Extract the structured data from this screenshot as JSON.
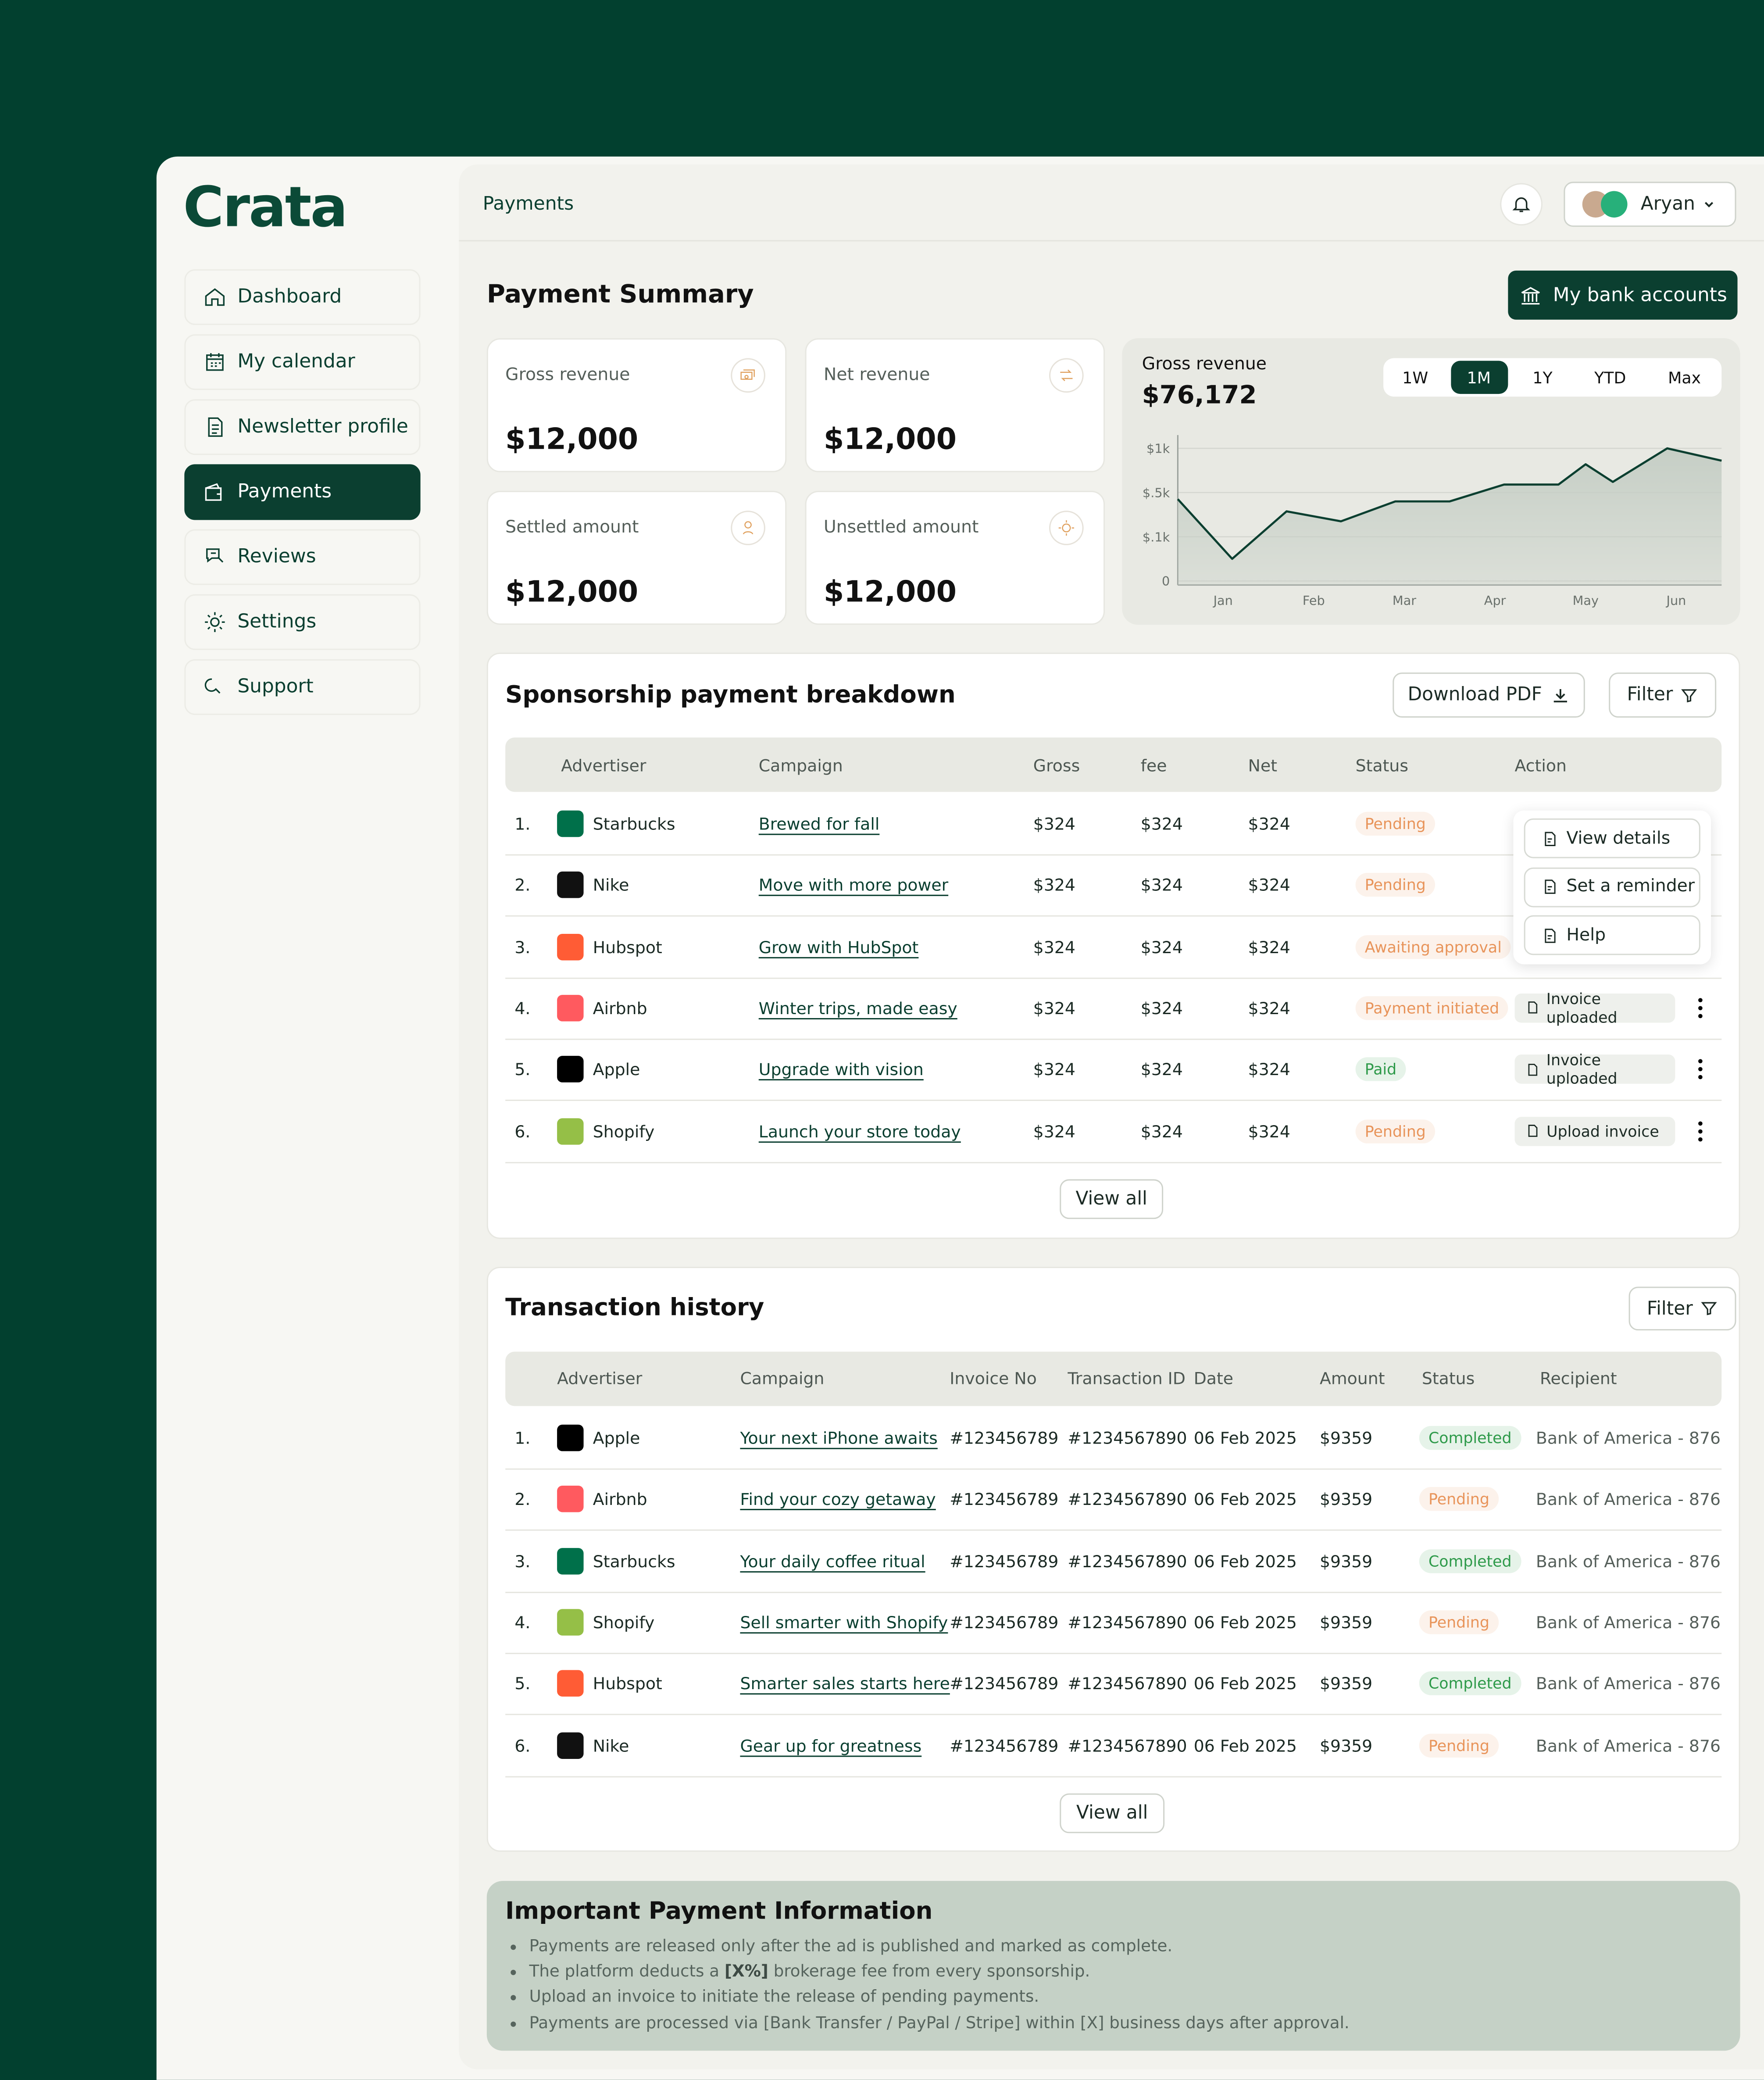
{
  "brand": "Crata",
  "nav": [
    "Dashboard",
    "My calendar",
    "Newsletter profile",
    "Payments",
    "Reviews",
    "Settings",
    "Support"
  ],
  "active_nav": 3,
  "header": {
    "page": "Payments",
    "user": "Aryan"
  },
  "summary": {
    "title": "Payment Summary",
    "bank_button": "My bank accounts",
    "cards": [
      {
        "label": "Gross revenue",
        "value": "$12,000"
      },
      {
        "label": "Net revenue",
        "value": "$12,000"
      },
      {
        "label": "Settled amount",
        "value": "$12,000"
      },
      {
        "label": "Unsettled amount",
        "value": "$12,000"
      }
    ]
  },
  "chart_data": {
    "type": "line",
    "title": "Gross revenue",
    "subtitle": "$76,172",
    "ranges": [
      "1W",
      "1M",
      "1Y",
      "YTD",
      "Max"
    ],
    "selected_range": 1,
    "x": [
      0.5,
      1.1,
      1.7,
      2.3,
      2.9,
      3.5,
      4.1,
      4.7,
      5.0,
      5.3,
      5.9,
      6.5
    ],
    "values": [
      440,
      50,
      330,
      240,
      420,
      420,
      590,
      590,
      820,
      620,
      1000,
      860
    ],
    "xlim": [
      0.5,
      6.5
    ],
    "xticks": [
      {
        "value": 1,
        "label": "Jan"
      },
      {
        "value": 2,
        "label": "Feb"
      },
      {
        "value": 3,
        "label": "Mar"
      },
      {
        "value": 4,
        "label": "Apr"
      },
      {
        "value": 5,
        "label": "May"
      },
      {
        "value": 6,
        "label": "Jun"
      }
    ],
    "ylim": [
      0,
      1000
    ],
    "yticks": [
      0,
      {
        "value": 100,
        "label": "$.1k"
      },
      {
        "value": 500,
        "label": "$.5k"
      },
      {
        "value": 1000,
        "label": "$1k"
      }
    ],
    "grid": true,
    "color": "#0b3f30",
    "area_color": "#c4cdc4"
  },
  "breakdown": {
    "title": "Sponsorship payment breakdown",
    "download": "Download PDF",
    "filter": "Filter",
    "columns": [
      "Advertiser",
      "Campaign",
      "Gross",
      "fee",
      "Net",
      "Status",
      "Action"
    ],
    "rows": [
      {
        "no": "1.",
        "advertiser": "Starbucks",
        "logo_color": "#00704a",
        "campaign": "Brewed for fall",
        "gross": "$324",
        "fee": "$324",
        "net": "$324",
        "status": "Pending",
        "status_color": "#e8945a"
      },
      {
        "no": "2.",
        "advertiser": "Nike",
        "logo_color": "#111111",
        "campaign": "Move with more power",
        "gross": "$324",
        "fee": "$324",
        "net": "$324",
        "status": "Pending",
        "status_color": "#e8945a"
      },
      {
        "no": "3.",
        "advertiser": "Hubspot",
        "logo_color": "#ff5c35",
        "campaign": "Grow with HubSpot",
        "gross": "$324",
        "fee": "$324",
        "net": "$324",
        "status": "Awaiting approval",
        "status_color": "#e8945a"
      },
      {
        "no": "4.",
        "advertiser": "Airbnb",
        "logo_color": "#ff5a5f",
        "campaign": "Winter trips, made easy",
        "gross": "$324",
        "fee": "$324",
        "net": "$324",
        "status": "Payment initiated",
        "status_color": "#e8945a",
        "action": "Invoice uploaded"
      },
      {
        "no": "5.",
        "advertiser": "Apple",
        "logo_color": "#000000",
        "campaign": "Upgrade with vision",
        "gross": "$324",
        "fee": "$324",
        "net": "$324",
        "status": "Paid",
        "status_color": "#2e9a4a",
        "action": "Invoice uploaded"
      },
      {
        "no": "6.",
        "advertiser": "Shopify",
        "logo_color": "#95bf47",
        "campaign": "Launch your store today",
        "gross": "$324",
        "fee": "$324",
        "net": "$324",
        "status": "Pending",
        "status_color": "#e8945a",
        "action": "Upload invoice"
      }
    ],
    "menu": [
      "View details",
      "Set a reminder",
      "Help"
    ],
    "view_all": "View all"
  },
  "transactions": {
    "title": "Transaction history",
    "filter": "Filter",
    "columns": [
      "Advertiser",
      "Campaign",
      "Invoice No",
      "Transaction ID",
      "Date",
      "Amount",
      "Status",
      "Recipient"
    ],
    "rows": [
      {
        "no": "1.",
        "advertiser": "Apple",
        "logo_color": "#000000",
        "campaign": "Your next iPhone awaits",
        "invoice": "#123456789",
        "transaction": "#1234567890",
        "date": "06 Feb 2025",
        "amount": "$9359",
        "status": "Completed",
        "status_color": "#2e9a4a",
        "recipient": "Bank of America - 876"
      },
      {
        "no": "2.",
        "advertiser": "Airbnb",
        "logo_color": "#ff5a5f",
        "campaign": "Find your cozy getaway",
        "invoice": "#123456789",
        "transaction": "#1234567890",
        "date": "06 Feb 2025",
        "amount": "$9359",
        "status": "Pending",
        "status_color": "#e8945a",
        "recipient": "Bank of America - 876"
      },
      {
        "no": "3.",
        "advertiser": "Starbucks",
        "logo_color": "#00704a",
        "campaign": "Your daily coffee ritual",
        "invoice": "#123456789",
        "transaction": "#1234567890",
        "date": "06 Feb 2025",
        "amount": "$9359",
        "status": "Completed",
        "status_color": "#2e9a4a",
        "recipient": "Bank of America - 876"
      },
      {
        "no": "4.",
        "advertiser": "Shopify",
        "logo_color": "#95bf47",
        "campaign": "Sell smarter with Shopify",
        "invoice": "#123456789",
        "transaction": "#1234567890",
        "date": "06 Feb 2025",
        "amount": "$9359",
        "status": "Pending",
        "status_color": "#e8945a",
        "recipient": "Bank of America - 876"
      },
      {
        "no": "5.",
        "advertiser": "Hubspot",
        "logo_color": "#ff5c35",
        "campaign": "Smarter sales starts here",
        "invoice": "#123456789",
        "transaction": "#1234567890",
        "date": "06 Feb 2025",
        "amount": "$9359",
        "status": "Completed",
        "status_color": "#2e9a4a",
        "recipient": "Bank of America - 876"
      },
      {
        "no": "6.",
        "advertiser": "Nike",
        "logo_color": "#111111",
        "campaign": "Gear up for greatness",
        "invoice": "#123456789",
        "transaction": "#1234567890",
        "date": "06 Feb 2025",
        "amount": "$9359",
        "status": "Pending",
        "status_color": "#e8945a",
        "recipient": "Bank of America - 876"
      }
    ],
    "view_all": "View all"
  },
  "info": {
    "title": "Important Payment Information",
    "items": [
      [
        "Payments are released only after the ad is published and marked as complete."
      ],
      [
        "The platform deducts a ",
        "[X%]",
        " brokerage fee from every sponsorship."
      ],
      [
        "Upload an invoice to initiate the release of pending payments."
      ],
      [
        "Payments are processed via [Bank Transfer / PayPal / Stripe] within [X] business days after approval."
      ]
    ]
  }
}
